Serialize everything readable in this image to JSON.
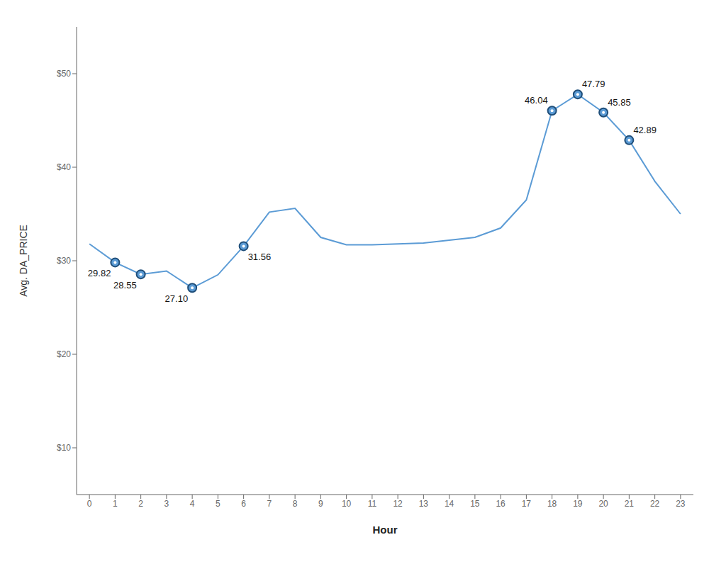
{
  "chart_data": {
    "type": "line",
    "x": [
      0,
      1,
      2,
      3,
      4,
      5,
      6,
      7,
      8,
      9,
      10,
      11,
      12,
      13,
      14,
      15,
      16,
      17,
      18,
      19,
      20,
      21,
      22,
      23
    ],
    "values": [
      31.8,
      29.82,
      28.55,
      28.9,
      27.1,
      28.5,
      31.56,
      35.2,
      35.6,
      32.5,
      31.7,
      31.7,
      31.8,
      31.9,
      32.2,
      32.5,
      33.5,
      36.5,
      46.04,
      47.79,
      45.85,
      42.89,
      38.5,
      35.0
    ],
    "color": "#5b9bd5",
    "xlabel": "Hour",
    "ylabel": "Avg. DA_PRICE",
    "xlim": [
      -0.5,
      23.5
    ],
    "xticks": [
      0,
      1,
      2,
      3,
      4,
      5,
      6,
      7,
      8,
      9,
      10,
      11,
      12,
      13,
      14,
      15,
      16,
      17,
      18,
      19,
      20,
      21,
      22,
      23
    ],
    "ylim": [
      5,
      55
    ],
    "yticks": [
      {
        "value": 10,
        "label": "$10"
      },
      {
        "value": 20,
        "label": "$20"
      },
      {
        "value": 30,
        "label": "$30"
      },
      {
        "value": 40,
        "label": "$40"
      },
      {
        "value": 50,
        "label": "$50"
      }
    ],
    "grid": false,
    "annotations": [
      {
        "x": 1,
        "y": 29.82,
        "text": "29.82"
      },
      {
        "x": 2,
        "y": 28.55,
        "text": "28.55"
      },
      {
        "x": 4,
        "y": 27.1,
        "text": "27.10"
      },
      {
        "x": 6,
        "y": 31.56,
        "text": "31.56"
      },
      {
        "x": 18,
        "y": 46.04,
        "text": "46.04"
      },
      {
        "x": 19,
        "y": 47.79,
        "text": "47.79"
      },
      {
        "x": 20,
        "y": 45.85,
        "text": "45.85"
      },
      {
        "x": 21,
        "y": 42.89,
        "text": "42.89"
      }
    ]
  }
}
